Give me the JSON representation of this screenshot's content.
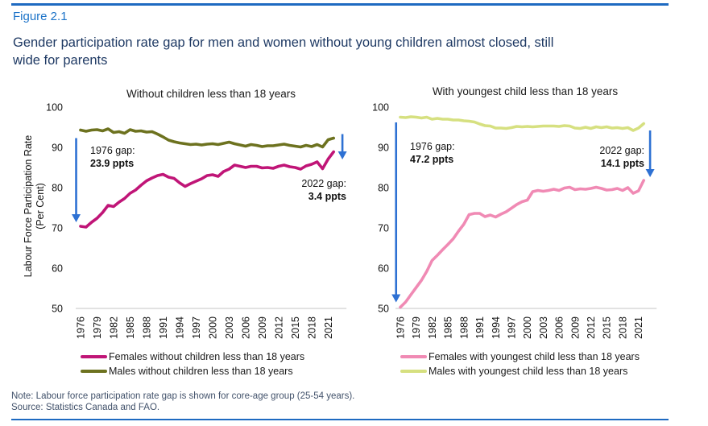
{
  "figure_label": "Figure 2.1",
  "title_lines": [
    "Gender participation rate gap for men and women without young children almost closed, still",
    "wide for parents"
  ],
  "y_axis_label_lines": [
    "Labour Force Participation Rate",
    "(Per Cent)"
  ],
  "note": "Note: Labour force participation rate gap is shown for core-age group (25-54 years).",
  "source": "Source: Statistics Canada and FAO.",
  "colors": {
    "rule_blue": "#1e6ac1",
    "figure_label_blue": "#1c73c8",
    "title_navy": "#1f3a64",
    "note_text": "#42526b",
    "arrow": "#2e71d3",
    "axis_line": "#d9d9d9"
  },
  "chart_data": [
    {
      "type": "line",
      "title": "Without children less than 18 years",
      "x_start": 1976,
      "x_end": 2022,
      "x_tick_labels": [
        "1976",
        "1979",
        "1982",
        "1985",
        "1988",
        "1991",
        "1994",
        "1997",
        "2000",
        "2003",
        "2006",
        "2009",
        "2012",
        "2015",
        "2018",
        "2021"
      ],
      "ylim": [
        50,
        100
      ],
      "yticks": [
        100,
        90,
        80,
        70,
        60,
        50
      ],
      "grid": false,
      "legend_position": "bottom",
      "series": [
        {
          "name": "Females without children less than 18 years",
          "color": "#c01577",
          "values": [
            70.4,
            70.2,
            71.4,
            72.4,
            73.8,
            75.6,
            75.3,
            76.4,
            77.3,
            78.6,
            79.4,
            80.6,
            81.7,
            82.4,
            83.0,
            83.3,
            82.6,
            82.3,
            81.2,
            80.3,
            81.0,
            81.6,
            82.2,
            83.0,
            83.2,
            82.8,
            84.0,
            84.6,
            85.6,
            85.3,
            85.0,
            85.3,
            85.3,
            84.9,
            85.0,
            84.8,
            85.3,
            85.6,
            85.2,
            85.0,
            84.6,
            85.4,
            85.8,
            86.4,
            84.7,
            87.1,
            88.9
          ]
        },
        {
          "name": "Males without children less than 18 years",
          "color": "#6d721f",
          "values": [
            94.3,
            94.0,
            94.3,
            94.4,
            94.1,
            94.6,
            93.7,
            93.9,
            93.5,
            94.4,
            94.0,
            94.1,
            93.8,
            93.9,
            93.3,
            92.6,
            91.8,
            91.4,
            91.1,
            90.9,
            90.7,
            90.8,
            90.6,
            90.8,
            90.9,
            90.7,
            91.0,
            91.3,
            90.9,
            90.6,
            90.3,
            90.7,
            90.5,
            90.2,
            90.4,
            90.4,
            90.6,
            90.8,
            90.5,
            90.3,
            90.1,
            90.5,
            90.2,
            90.7,
            90.1,
            91.9,
            92.3
          ]
        }
      ],
      "annotations": [
        {
          "line1": "1976 gap:",
          "line2": "23.9 ppts"
        },
        {
          "line1": "2022 gap:",
          "line2": "3.4 ppts"
        }
      ],
      "arrows": [
        {
          "x_year": 1975.2,
          "from": 92.3,
          "to": 71.4
        },
        {
          "x_year": 2023.6,
          "from": 93.3,
          "to": 87.0
        }
      ]
    },
    {
      "type": "line",
      "title": "With youngest child less than 18 years",
      "x_start": 1976,
      "x_end": 2022,
      "x_tick_labels": [
        "1976",
        "1979",
        "1982",
        "1985",
        "1988",
        "1991",
        "1994",
        "1997",
        "2000",
        "2003",
        "2006",
        "2009",
        "2012",
        "2015",
        "2018",
        "2021"
      ],
      "ylim": [
        50,
        100
      ],
      "yticks": [
        100,
        90,
        80,
        70,
        60,
        50
      ],
      "grid": false,
      "legend_position": "bottom",
      "series": [
        {
          "name": "Females with youngest child less than 18 years",
          "color": "#f08ab4",
          "values": [
            50.3,
            51.6,
            53.4,
            55.2,
            57.0,
            59.2,
            61.9,
            63.2,
            64.6,
            65.9,
            67.3,
            69.2,
            70.9,
            73.3,
            73.6,
            73.6,
            72.8,
            73.2,
            72.7,
            73.4,
            74.0,
            74.9,
            75.8,
            76.5,
            76.9,
            79.0,
            79.3,
            79.1,
            79.3,
            79.6,
            79.3,
            79.9,
            80.1,
            79.5,
            79.7,
            79.6,
            79.8,
            80.1,
            79.8,
            79.4,
            79.5,
            79.8,
            79.3,
            80.0,
            78.6,
            79.2,
            81.8
          ]
        },
        {
          "name": "Males with youngest child less than 18 years",
          "color": "#d6e080",
          "values": [
            97.5,
            97.4,
            97.6,
            97.5,
            97.3,
            97.5,
            97.0,
            97.2,
            97.0,
            97.0,
            96.8,
            96.8,
            96.6,
            96.5,
            96.3,
            95.8,
            95.4,
            95.3,
            94.8,
            94.8,
            94.7,
            94.9,
            95.2,
            95.1,
            95.2,
            95.1,
            95.2,
            95.3,
            95.3,
            95.3,
            95.2,
            95.4,
            95.3,
            94.8,
            94.7,
            95.0,
            94.7,
            95.1,
            94.9,
            95.1,
            94.8,
            94.9,
            94.7,
            94.9,
            94.2,
            94.8,
            95.9
          ]
        }
      ],
      "annotations": [
        {
          "line1": "1976 gap:",
          "line2": "47.2 ppts"
        },
        {
          "line1": "2022 gap:",
          "line2": "14.1 ppts"
        }
      ],
      "arrows": [
        {
          "x_year": 1975.2,
          "from": 96.2,
          "to": 51.5
        },
        {
          "x_year": 2023.2,
          "from": 94.2,
          "to": 82.6
        }
      ]
    }
  ]
}
